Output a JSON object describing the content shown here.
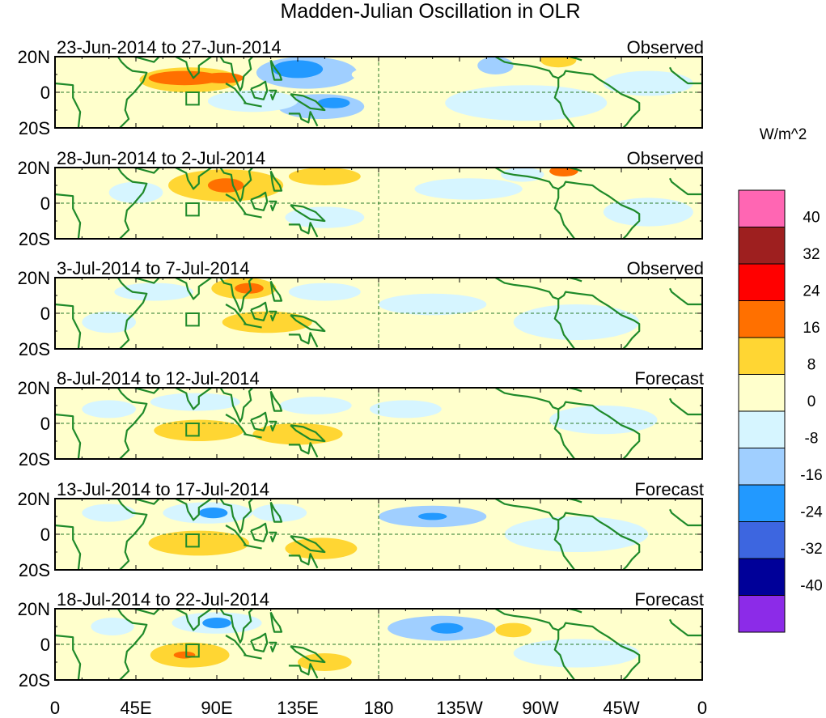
{
  "chart_data": {
    "type": "heatmap",
    "title": "Madden-Julian Oscillation in OLR",
    "units_label": "W/m^2",
    "x_tick_labels": [
      "0",
      "45E",
      "90E",
      "135E",
      "180",
      "135W",
      "90W",
      "45W",
      "0"
    ],
    "y_tick_labels": [
      "20N",
      "0",
      "20S"
    ],
    "lon_range_deg": [
      0,
      360
    ],
    "lat_range_deg": [
      -20,
      20
    ],
    "colorbar": {
      "levels": [
        "40",
        "32",
        "24",
        "16",
        "8",
        "0",
        "-8",
        "-16",
        "-24",
        "-32",
        "-40"
      ],
      "colors": [
        "#ff66b3",
        "#9e1f1f",
        "#ff0000",
        "#ff7000",
        "#ffd633",
        "#ffffcc",
        "#d6f5ff",
        "#a0cfff",
        "#2299ff",
        "#3d66e0",
        "#000099",
        "#8c2be8"
      ]
    },
    "panels": [
      {
        "period": "23-Jun-2014 to 27-Jun-2014",
        "label": "Observed",
        "anomalies": [
          {
            "lon": 40,
            "lat": 8,
            "rlon": 12,
            "rlat": 5,
            "value": 6
          },
          {
            "lon": 75,
            "lat": 7,
            "rlon": 28,
            "rlat": 7,
            "value": 10
          },
          {
            "lon": 72,
            "lat": 8,
            "rlon": 20,
            "rlat": 4,
            "value": 18
          },
          {
            "lon": 93,
            "lat": 8,
            "rlon": 12,
            "rlat": 3,
            "value": 18
          },
          {
            "lon": 140,
            "lat": 11,
            "rlon": 28,
            "rlat": 9,
            "value": -10
          },
          {
            "lon": 135,
            "lat": 13,
            "rlon": 14,
            "rlat": 5,
            "value": -20
          },
          {
            "lon": 148,
            "lat": -8,
            "rlon": 24,
            "rlat": 7,
            "value": -10
          },
          {
            "lon": 155,
            "lat": -6,
            "rlon": 9,
            "rlat": 3,
            "value": -22
          },
          {
            "lon": 262,
            "lat": -6,
            "rlon": 45,
            "rlat": 10,
            "value": -4
          },
          {
            "lon": 245,
            "lat": 15,
            "rlon": 10,
            "rlat": 5,
            "value": -10
          },
          {
            "lon": 280,
            "lat": 18,
            "rlon": 10,
            "rlat": 4,
            "value": 14
          },
          {
            "lon": 110,
            "lat": -5,
            "rlon": 25,
            "rlat": 6,
            "value": -4
          },
          {
            "lon": 195,
            "lat": 10,
            "rlon": 30,
            "rlat": 6,
            "value": 3
          },
          {
            "lon": 330,
            "lat": 5,
            "rlon": 25,
            "rlat": 7,
            "value": -3
          }
        ]
      },
      {
        "period": "28-Jun-2014 to 2-Jul-2014",
        "label": "Observed",
        "anomalies": [
          {
            "lon": 95,
            "lat": 10,
            "rlon": 32,
            "rlat": 9,
            "value": 10
          },
          {
            "lon": 95,
            "lat": 10,
            "rlon": 10,
            "rlat": 4,
            "value": 18
          },
          {
            "lon": 150,
            "lat": 15,
            "rlon": 20,
            "rlat": 5,
            "value": 9
          },
          {
            "lon": 45,
            "lat": 6,
            "rlon": 15,
            "rlat": 6,
            "value": -5
          },
          {
            "lon": 150,
            "lat": -8,
            "rlon": 22,
            "rlat": 6,
            "value": -5
          },
          {
            "lon": 230,
            "lat": 8,
            "rlon": 30,
            "rlat": 6,
            "value": -4
          },
          {
            "lon": 283,
            "lat": 18,
            "rlon": 8,
            "rlat": 3,
            "value": 18
          },
          {
            "lon": 260,
            "lat": 16,
            "rlon": 12,
            "rlat": 4,
            "value": -8
          },
          {
            "lon": 330,
            "lat": -5,
            "rlon": 25,
            "rlat": 8,
            "value": -4
          },
          {
            "lon": 200,
            "lat": -8,
            "rlon": 20,
            "rlat": 5,
            "value": 3
          }
        ]
      },
      {
        "period": "3-Jul-2014 to 7-Jul-2014",
        "label": "Observed",
        "anomalies": [
          {
            "lon": 105,
            "lat": 14,
            "rlon": 18,
            "rlat": 6,
            "value": 10
          },
          {
            "lon": 108,
            "lat": 14,
            "rlon": 8,
            "rlat": 3,
            "value": 18
          },
          {
            "lon": 118,
            "lat": -5,
            "rlon": 25,
            "rlat": 6,
            "value": 10
          },
          {
            "lon": 55,
            "lat": 12,
            "rlon": 22,
            "rlat": 5,
            "value": -6
          },
          {
            "lon": 30,
            "lat": -5,
            "rlon": 15,
            "rlat": 6,
            "value": -5
          },
          {
            "lon": 150,
            "lat": 12,
            "rlon": 20,
            "rlat": 5,
            "value": -5
          },
          {
            "lon": 210,
            "lat": 5,
            "rlon": 30,
            "rlat": 6,
            "value": -4
          },
          {
            "lon": 290,
            "lat": -5,
            "rlon": 35,
            "rlat": 10,
            "value": -4
          },
          {
            "lon": 160,
            "lat": -12,
            "rlon": 20,
            "rlat": 5,
            "value": 4
          },
          {
            "lon": 250,
            "lat": 12,
            "rlon": 15,
            "rlat": 4,
            "value": 3
          }
        ]
      },
      {
        "period": "8-Jul-2014 to 12-Jul-2014",
        "label": "Forecast",
        "anomalies": [
          {
            "lon": 80,
            "lat": -4,
            "rlon": 25,
            "rlat": 6,
            "value": 9
          },
          {
            "lon": 135,
            "lat": -6,
            "rlon": 25,
            "rlat": 6,
            "value": 9
          },
          {
            "lon": 78,
            "lat": 12,
            "rlon": 25,
            "rlat": 5,
            "value": -6
          },
          {
            "lon": 145,
            "lat": 10,
            "rlon": 20,
            "rlat": 5,
            "value": -6
          },
          {
            "lon": 195,
            "lat": 8,
            "rlon": 20,
            "rlat": 5,
            "value": -4
          },
          {
            "lon": 30,
            "lat": 8,
            "rlon": 15,
            "rlat": 5,
            "value": -4
          },
          {
            "lon": 305,
            "lat": 2,
            "rlon": 30,
            "rlat": 8,
            "value": -3
          },
          {
            "lon": 250,
            "lat": 14,
            "rlon": 12,
            "rlat": 3,
            "value": 4
          }
        ]
      },
      {
        "period": "13-Jul-2014 to 17-Jul-2014",
        "label": "Forecast",
        "anomalies": [
          {
            "lon": 80,
            "lat": -5,
            "rlon": 28,
            "rlat": 7,
            "value": 9
          },
          {
            "lon": 148,
            "lat": -8,
            "rlon": 20,
            "rlat": 6,
            "value": 9
          },
          {
            "lon": 85,
            "lat": 12,
            "rlon": 25,
            "rlat": 6,
            "value": -8
          },
          {
            "lon": 88,
            "lat": 12,
            "rlon": 8,
            "rlat": 3,
            "value": -18
          },
          {
            "lon": 210,
            "lat": 10,
            "rlon": 30,
            "rlat": 6,
            "value": -9
          },
          {
            "lon": 210,
            "lat": 10,
            "rlon": 8,
            "rlat": 2,
            "value": -18
          },
          {
            "lon": 125,
            "lat": 12,
            "rlon": 15,
            "rlat": 5,
            "value": -6
          },
          {
            "lon": 30,
            "lat": 12,
            "rlon": 15,
            "rlat": 5,
            "value": -5
          },
          {
            "lon": 290,
            "lat": 0,
            "rlon": 40,
            "rlat": 10,
            "value": -4
          },
          {
            "lon": 250,
            "lat": 14,
            "rlon": 10,
            "rlat": 3,
            "value": 4
          }
        ]
      },
      {
        "period": "18-Jul-2014 to 22-Jul-2014",
        "label": "Forecast",
        "anomalies": [
          {
            "lon": 75,
            "lat": -6,
            "rlon": 22,
            "rlat": 7,
            "value": 10
          },
          {
            "lon": 72,
            "lat": -6,
            "rlon": 6,
            "rlat": 2,
            "value": 18
          },
          {
            "lon": 150,
            "lat": -10,
            "rlon": 15,
            "rlat": 5,
            "value": 9
          },
          {
            "lon": 90,
            "lat": 12,
            "rlon": 25,
            "rlat": 6,
            "value": -8
          },
          {
            "lon": 90,
            "lat": 12,
            "rlon": 8,
            "rlat": 3,
            "value": -18
          },
          {
            "lon": 215,
            "lat": 9,
            "rlon": 30,
            "rlat": 7,
            "value": -9
          },
          {
            "lon": 218,
            "lat": 9,
            "rlon": 9,
            "rlat": 3,
            "value": -20
          },
          {
            "lon": 255,
            "lat": 8,
            "rlon": 10,
            "rlat": 4,
            "value": 10
          },
          {
            "lon": 32,
            "lat": 10,
            "rlon": 12,
            "rlat": 5,
            "value": -5
          },
          {
            "lon": 290,
            "lat": -5,
            "rlon": 35,
            "rlat": 8,
            "value": -4
          },
          {
            "lon": 125,
            "lat": -2,
            "rlon": 20,
            "rlat": 5,
            "value": 3
          }
        ]
      }
    ]
  }
}
